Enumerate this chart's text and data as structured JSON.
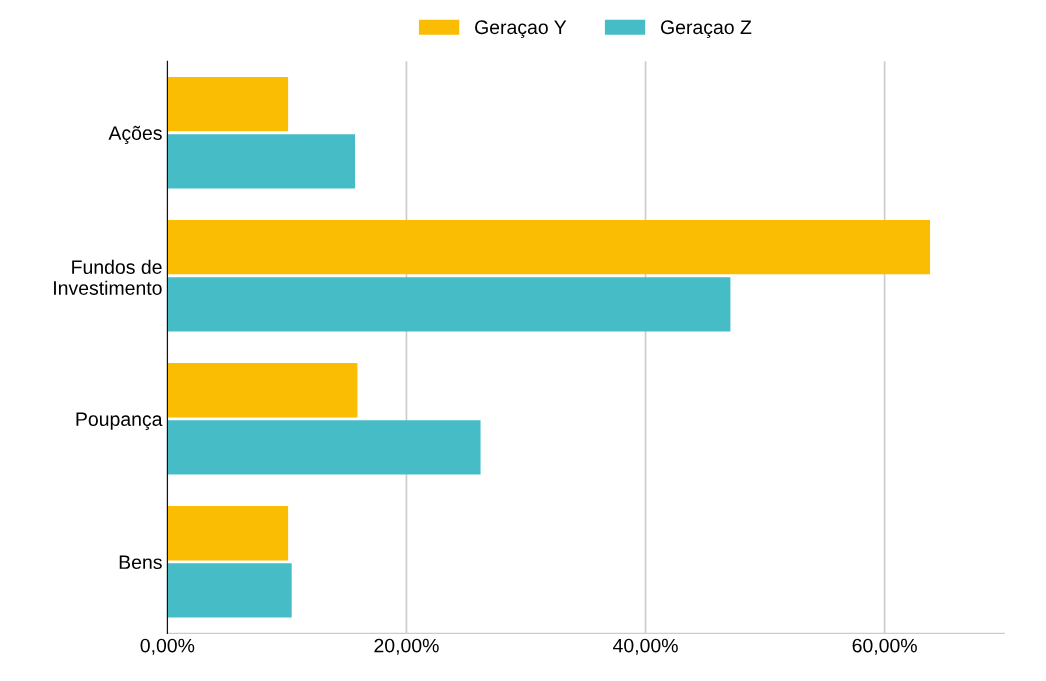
{
  "chart_data": {
    "type": "bar",
    "orientation": "horizontal",
    "categories": [
      "Ações",
      "Fundos de\nInvestimento",
      "Poupança",
      "Bens"
    ],
    "series": [
      {
        "name": "Geraçao Y",
        "color": "#fbbc04",
        "values": [
          10.1,
          63.8,
          15.9,
          10.1
        ]
      },
      {
        "name": "Geraçao Z",
        "color": "#46bdc6",
        "values": [
          15.7,
          47.1,
          26.2,
          10.4
        ]
      }
    ],
    "xlim": [
      0,
      70
    ],
    "xticks": [
      {
        "value": 0,
        "label": "0,00%"
      },
      {
        "value": 20,
        "label": "20,00%"
      },
      {
        "value": 40,
        "label": "40,00%"
      },
      {
        "value": 60,
        "label": "60,00%"
      }
    ],
    "grid": "x",
    "legend": "top"
  }
}
